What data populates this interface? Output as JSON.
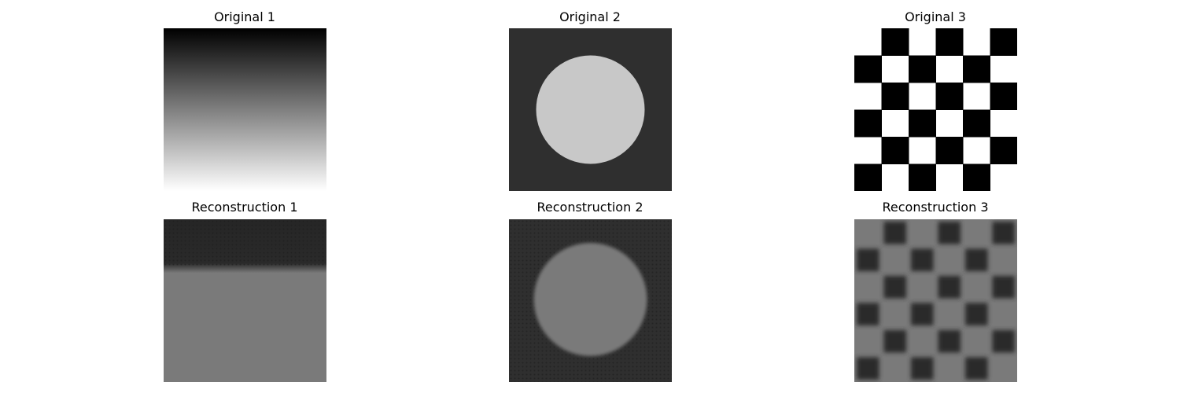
{
  "panels": [
    {
      "title": "Original 1",
      "kind": "gradient"
    },
    {
      "title": "Original 2",
      "kind": "circle"
    },
    {
      "title": "Original 3",
      "kind": "checker"
    },
    {
      "title": "Reconstruction 1",
      "kind": "gradient-recon"
    },
    {
      "title": "Reconstruction 2",
      "kind": "circle-recon"
    },
    {
      "title": "Reconstruction 3",
      "kind": "checker-recon"
    }
  ],
  "colors": {
    "dark_bg": "#2f2f2f",
    "circle_light": "#c8c8c8",
    "recon_gray": "#7a7a7a",
    "recon_dark": "#2b2b2b"
  }
}
